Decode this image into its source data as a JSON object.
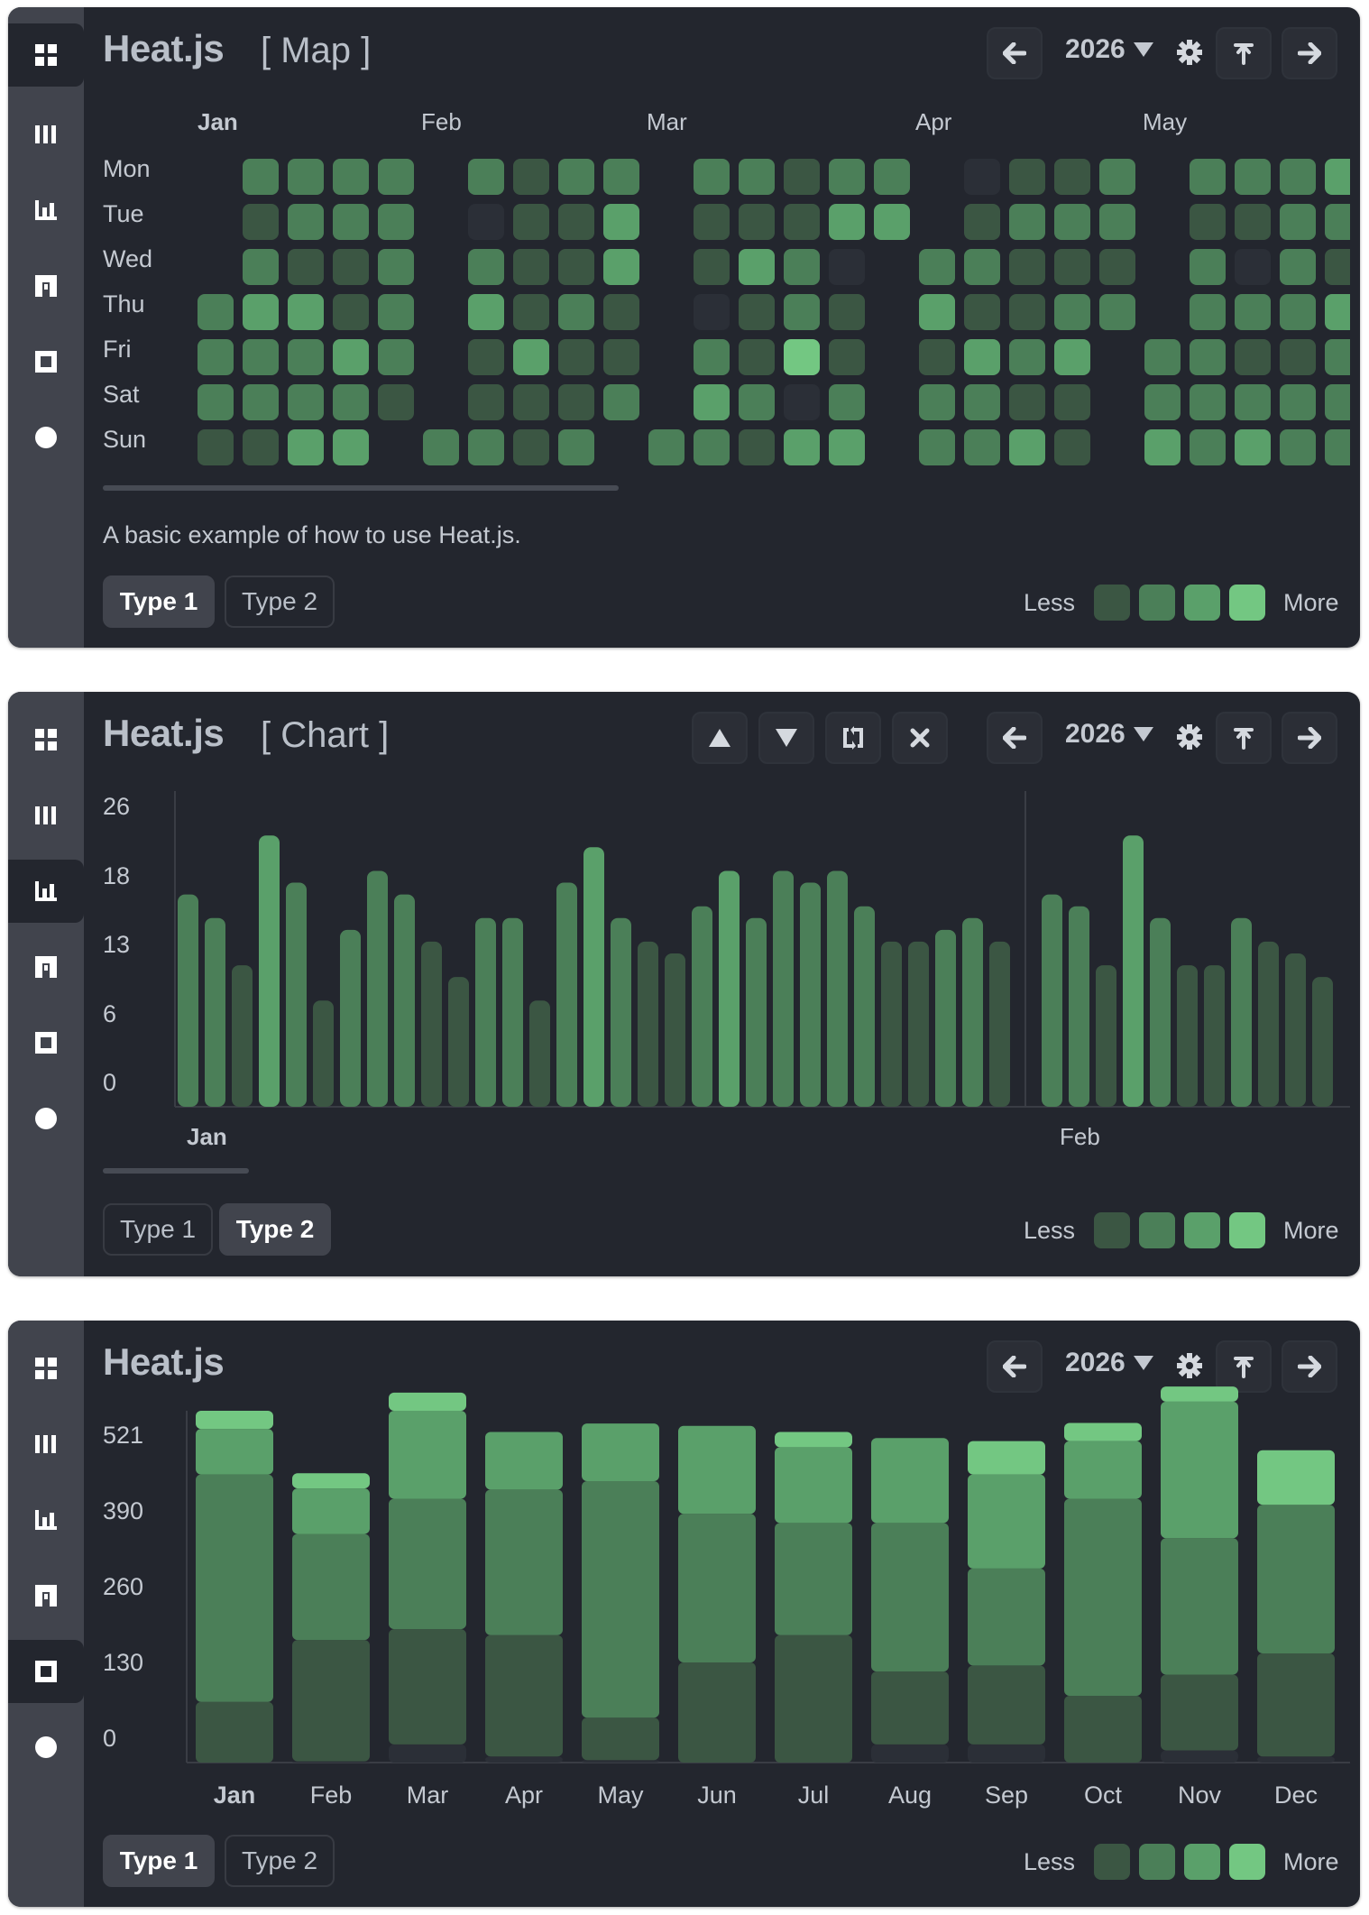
{
  "colors": {
    "panel_bg": "#23262e",
    "sidebar_bg": "#41444d",
    "level0": "#2b2f37",
    "level1": "#3b5643",
    "level2": "#4b7f58",
    "level3": "#5aa06a",
    "level4": "#73c782"
  },
  "sidebar_icons": [
    "grid-icon",
    "columns-icon",
    "bar-chart-icon",
    "frame-icon",
    "square-icon",
    "dot-icon"
  ],
  "map": {
    "title": "Heat.js",
    "subtitle": "[ Map ]",
    "year": "2026",
    "months": [
      "Jan",
      "Feb",
      "Mar",
      "Apr",
      "May"
    ],
    "days": [
      "Mon",
      "Tue",
      "Wed",
      "Thu",
      "Fri",
      "Sat",
      "Sun"
    ],
    "description": "A basic example of how to use Heat.js.",
    "weeks": [
      [
        null,
        null,
        null,
        2,
        2,
        2,
        1
      ],
      [
        2,
        1,
        2,
        3,
        2,
        2,
        1
      ],
      [
        2,
        2,
        1,
        3,
        2,
        2,
        3
      ],
      [
        2,
        2,
        1,
        1,
        3,
        2,
        3
      ],
      [
        2,
        2,
        2,
        2,
        2,
        1,
        null
      ],
      [
        null,
        null,
        null,
        null,
        null,
        null,
        2
      ],
      [
        2,
        0,
        2,
        3,
        1,
        1,
        2
      ],
      [
        1,
        1,
        1,
        1,
        3,
        1,
        1
      ],
      [
        2,
        1,
        1,
        2,
        1,
        1,
        2
      ],
      [
        2,
        3,
        3,
        1,
        1,
        2,
        null
      ],
      [
        null,
        null,
        null,
        null,
        null,
        null,
        2
      ],
      [
        2,
        1,
        1,
        0,
        2,
        3,
        2
      ],
      [
        2,
        1,
        3,
        1,
        1,
        2,
        1
      ],
      [
        1,
        1,
        2,
        2,
        4,
        0,
        3
      ],
      [
        2,
        3,
        0,
        1,
        1,
        2,
        3
      ],
      [
        2,
        3,
        null,
        null,
        null,
        null,
        null
      ],
      [
        null,
        null,
        2,
        3,
        1,
        2,
        2
      ],
      [
        0,
        1,
        2,
        1,
        3,
        2,
        2
      ],
      [
        1,
        2,
        1,
        1,
        2,
        1,
        3
      ],
      [
        1,
        2,
        1,
        2,
        3,
        1,
        1
      ],
      [
        2,
        2,
        1,
        2,
        null,
        null,
        null
      ],
      [
        null,
        null,
        null,
        null,
        2,
        2,
        3
      ],
      [
        2,
        1,
        2,
        2,
        2,
        2,
        2
      ],
      [
        2,
        1,
        0,
        2,
        1,
        2,
        3
      ],
      [
        2,
        2,
        2,
        2,
        1,
        2,
        2
      ],
      [
        3,
        2,
        1,
        3,
        2,
        2,
        2
      ]
    ]
  },
  "chart": {
    "title": "Heat.js",
    "subtitle": "[ Chart ]",
    "year": "2026"
  },
  "chart_data": [
    {
      "type": "bar",
      "yticks": [
        "26",
        "18",
        "13",
        "6",
        "0"
      ],
      "ylim": [
        0,
        26
      ],
      "month_labels": [
        "Jan",
        "Feb"
      ],
      "values": [
        18,
        16,
        12,
        23,
        19,
        9,
        15,
        20,
        18,
        14,
        11,
        16,
        16,
        9,
        19,
        22,
        16,
        14,
        13,
        17,
        20,
        16,
        20,
        19,
        20,
        17,
        14,
        14,
        15,
        16,
        14,
        18,
        17,
        12,
        23,
        16,
        12,
        12,
        16,
        14,
        13,
        11
      ],
      "levels": [
        2,
        2,
        1,
        3,
        2,
        1,
        2,
        2,
        2,
        1,
        1,
        2,
        2,
        1,
        2,
        3,
        2,
        1,
        1,
        2,
        3,
        2,
        2,
        2,
        2,
        2,
        1,
        1,
        2,
        2,
        1,
        2,
        2,
        1,
        3,
        2,
        1,
        1,
        2,
        1,
        1,
        1
      ]
    },
    {
      "type": "bar",
      "stacked": true,
      "yticks": [
        "521",
        "390",
        "260",
        "130",
        "0"
      ],
      "ylim": [
        0,
        580
      ],
      "categories": [
        "Jan",
        "Feb",
        "Mar",
        "Apr",
        "May",
        "Jun",
        "Jul",
        "Aug",
        "Sep",
        "Oct",
        "Nov",
        "Dec"
      ],
      "series": [
        {
          "values": [
            0,
            2,
            30,
            10,
            4,
            0,
            0,
            30,
            30,
            0,
            20,
            10
          ]
        },
        {
          "values": [
            100,
            200,
            190,
            200,
            70,
            165,
            210,
            120,
            130,
            110,
            125,
            170
          ]
        },
        {
          "values": [
            375,
            175,
            215,
            240,
            390,
            245,
            185,
            245,
            160,
            325,
            225,
            245
          ]
        },
        {
          "values": [
            75,
            75,
            145,
            95,
            95,
            145,
            125,
            140,
            155,
            95,
            225,
            0
          ]
        },
        {
          "values": [
            30,
            25,
            30,
            0,
            0,
            0,
            25,
            0,
            55,
            30,
            25,
            90
          ]
        }
      ]
    }
  ],
  "total": {
    "title": "Heat.js",
    "year": "2026"
  },
  "type_buttons": {
    "type1": "Type 1",
    "type2": "Type 2"
  },
  "legend": {
    "less": "Less",
    "more": "More"
  }
}
